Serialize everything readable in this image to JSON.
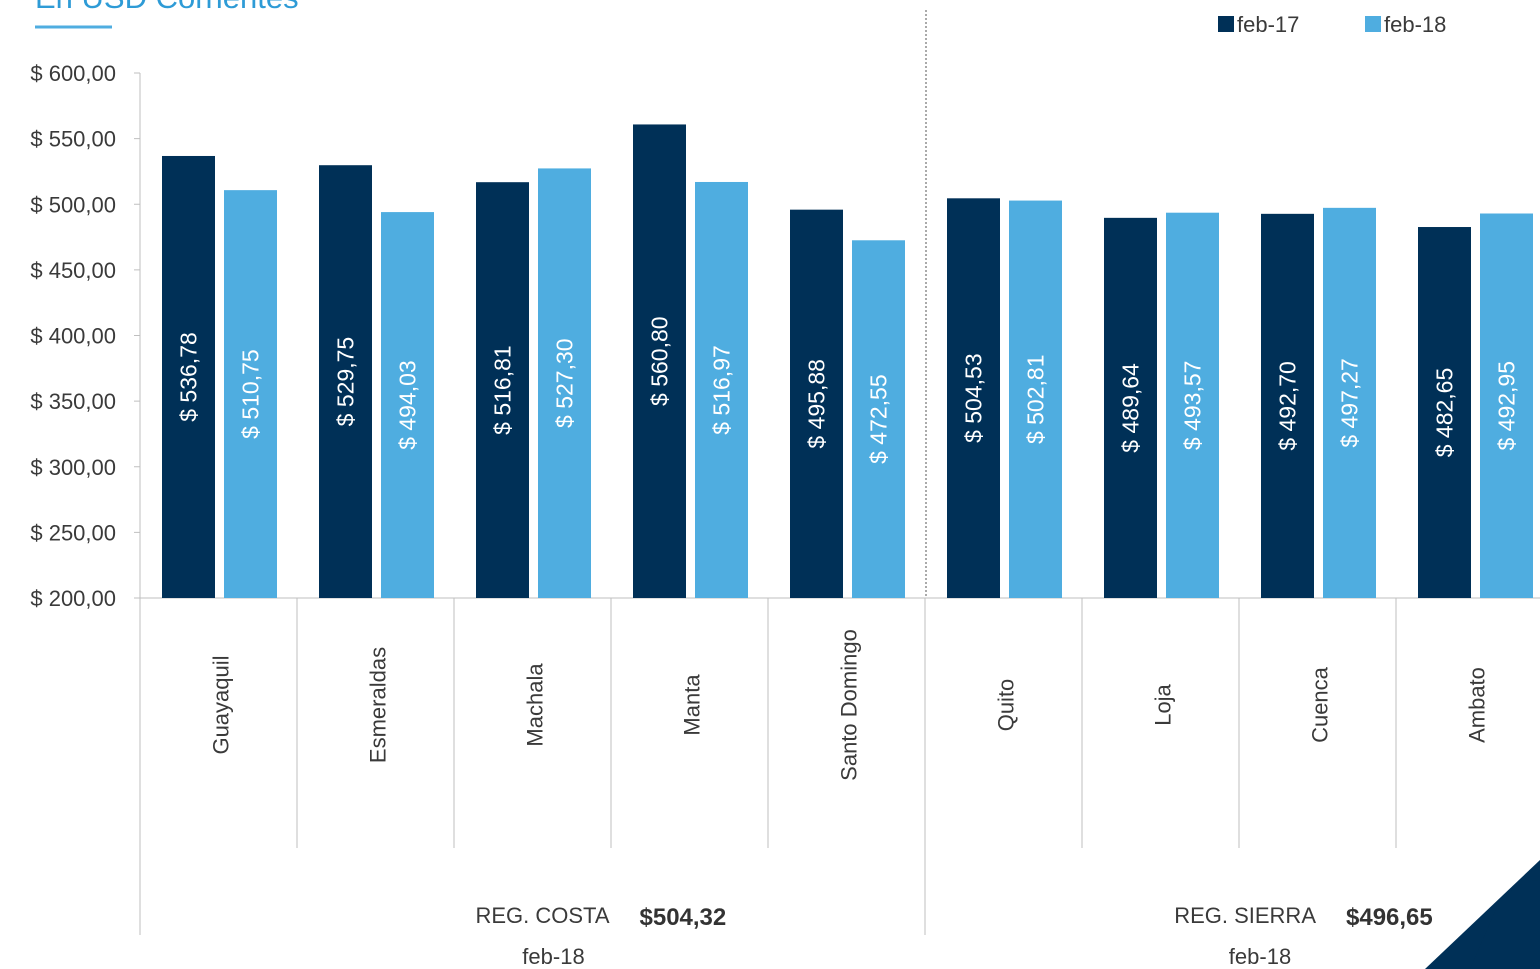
{
  "chart_data": {
    "type": "bar",
    "subtitle": "En USD Corrientes",
    "categories": [
      "Guayaquil",
      "Esmeraldas",
      "Machala",
      "Manta",
      "Santo Domingo",
      "Quito",
      "Loja",
      "Cuenca",
      "Ambato"
    ],
    "series": [
      {
        "name": "feb-17",
        "color": "#003057",
        "values": [
          536.78,
          529.75,
          516.81,
          560.8,
          495.88,
          504.53,
          489.64,
          492.7,
          482.65
        ],
        "value_labels": [
          "$ 536,78",
          "$ 529,75",
          "$ 516,81",
          "$ 560,80",
          "$ 495,88",
          "$ 504,53",
          "$ 489,64",
          "$ 492,70",
          "$ 482,65"
        ]
      },
      {
        "name": "feb-18",
        "color": "#4fade0",
        "values": [
          510.75,
          494.03,
          527.3,
          516.97,
          472.55,
          502.81,
          493.57,
          497.27,
          492.95
        ],
        "value_labels": [
          "$ 510,75",
          "$ 494,03",
          "$ 527,30",
          "$ 516,97",
          "$ 472,55",
          "$ 502,81",
          "$ 493,57",
          "$ 497,27",
          "$ 492,95"
        ]
      }
    ],
    "groups": [
      {
        "name": "REG. COSTA",
        "value": 504.32,
        "value_label": "$504,32",
        "period": "feb-18"
      },
      {
        "name": "REG. SIERRA",
        "value": 496.65,
        "value_label": "$496,65",
        "period": "feb-18"
      }
    ],
    "ylim": [
      200,
      600
    ],
    "yticks": [
      {
        "value": 200,
        "label": "$ 200,00"
      },
      {
        "value": 250,
        "label": "$ 250,00"
      },
      {
        "value": 300,
        "label": "$ 300,00"
      },
      {
        "value": 350,
        "label": "$ 350,00"
      },
      {
        "value": 400,
        "label": "$ 400,00"
      },
      {
        "value": 450,
        "label": "$ 450,00"
      },
      {
        "value": 500,
        "label": "$ 500,00"
      },
      {
        "value": 550,
        "label": "$ 550,00"
      },
      {
        "value": 600,
        "label": "$ 600,00"
      }
    ],
    "legend": "top-right"
  }
}
